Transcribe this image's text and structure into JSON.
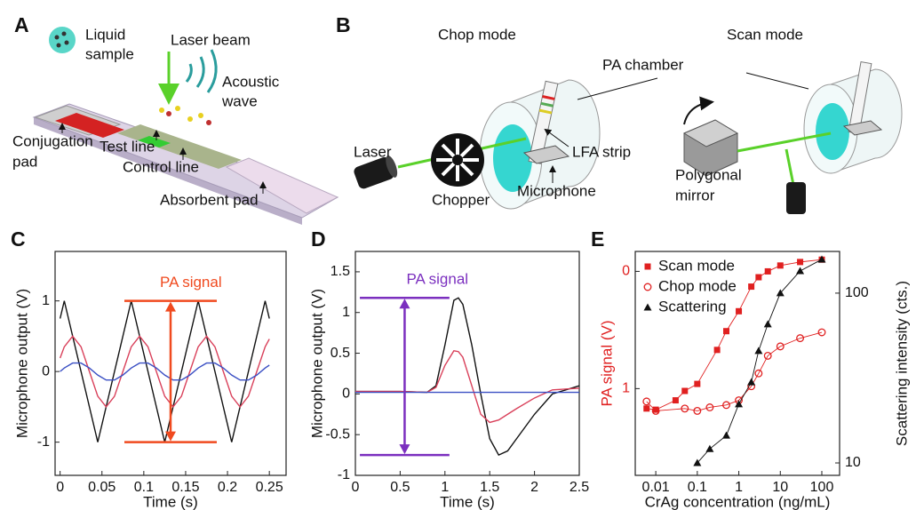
{
  "panel_a": {
    "label": "A",
    "texts": [
      "Liquid",
      "sample",
      "Laser beam",
      "Acoustic",
      "wave",
      "Conjugation",
      "pad",
      "Test line",
      "Control line",
      "Absorbent pad"
    ]
  },
  "panel_b": {
    "label": "B",
    "texts": [
      "Chop mode",
      "Scan mode",
      "PA chamber",
      "Laser",
      "LFA strip",
      "Chopper",
      "Microphone",
      "Polygonal",
      "mirror"
    ]
  },
  "chart_data": [
    {
      "type": "line",
      "panel_label": "C",
      "xlabel": "Time (s)",
      "ylabel": "Microphone output (V)",
      "x": [
        0,
        0.005,
        0.015,
        0.025,
        0.035,
        0.045,
        0.055,
        0.065,
        0.075,
        0.085,
        0.095,
        0.105,
        0.115,
        0.125,
        0.135,
        0.145,
        0.155,
        0.165,
        0.175,
        0.185,
        0.195,
        0.205,
        0.215,
        0.225,
        0.235,
        0.245,
        0.25
      ],
      "series": [
        {
          "color": "#111111",
          "values": [
            0.75,
            1,
            0.5,
            0,
            -0.5,
            -1,
            -0.5,
            0,
            0.5,
            1,
            0.5,
            0,
            -0.5,
            -1,
            -0.5,
            0,
            0.5,
            1,
            0.5,
            0,
            -0.5,
            -1,
            -0.5,
            0,
            0.5,
            1,
            0.75
          ]
        },
        {
          "color": "#d9405a",
          "values": [
            0.19,
            0.35,
            0.5,
            0.35,
            0,
            -0.35,
            -0.5,
            -0.35,
            0,
            0.35,
            0.5,
            0.35,
            0,
            -0.35,
            -0.5,
            -0.35,
            0,
            0.35,
            0.5,
            0.35,
            0,
            -0.35,
            -0.5,
            -0.35,
            0,
            0.35,
            0.46
          ]
        },
        {
          "color": "#3a4fc4",
          "values": [
            0,
            0.05,
            0.12,
            0.12,
            0.05,
            -0.05,
            -0.12,
            -0.12,
            -0.05,
            0.05,
            0.12,
            0.12,
            0.05,
            -0.05,
            -0.12,
            -0.12,
            -0.05,
            0.05,
            0.12,
            0.12,
            0.05,
            -0.05,
            -0.12,
            -0.12,
            -0.05,
            0.05,
            0.09
          ]
        }
      ],
      "xlim": [
        -0.006,
        0.27
      ],
      "xticks": [
        0,
        0.05,
        0.1,
        0.15,
        0.2,
        0.25
      ],
      "ylim": [
        -1.47,
        1.7
      ],
      "yticks": [
        -1,
        0,
        1
      ],
      "annotation": {
        "text": "PA signal",
        "color": "#f04a1f"
      }
    },
    {
      "type": "line",
      "panel_label": "D",
      "xlabel": "Time (s)",
      "ylabel": "Microphone output (V)",
      "x": [
        0,
        0.5,
        0.8,
        0.9,
        1.0,
        1.1,
        1.15,
        1.2,
        1.3,
        1.4,
        1.5,
        1.6,
        1.7,
        1.8,
        2.0,
        2.2,
        2.5
      ],
      "series": [
        {
          "color": "#111111",
          "values": [
            0.03,
            0.03,
            0.02,
            0.1,
            0.6,
            1.15,
            1.18,
            1.1,
            0.6,
            0.0,
            -0.55,
            -0.75,
            -0.7,
            -0.55,
            -0.25,
            0.0,
            0.1
          ]
        },
        {
          "color": "#d9405a",
          "values": [
            0.03,
            0.03,
            0.02,
            0.08,
            0.35,
            0.53,
            0.52,
            0.45,
            0.1,
            -0.25,
            -0.35,
            -0.32,
            -0.25,
            -0.18,
            -0.05,
            0.05,
            0.07
          ]
        },
        {
          "color": "#3a4fc4",
          "values": [
            0.02,
            0.02,
            0.02,
            0.02,
            0.02,
            0.02,
            0.02,
            0.02,
            0.02,
            0.02,
            0.02,
            0.02,
            0.02,
            0.02,
            0.02,
            0.02,
            0.02
          ]
        }
      ],
      "xlim": [
        0,
        2.5
      ],
      "xticks": [
        0,
        0.5,
        1,
        1.5,
        2,
        2.5
      ],
      "ylim": [
        -1,
        1.75
      ],
      "yticks": [
        -1,
        -0.5,
        0,
        0.5,
        1,
        1.5
      ],
      "annotation": {
        "text": "PA signal",
        "color": "#7b2fbf"
      }
    },
    {
      "type": "scatter",
      "panel_label": "E",
      "xlabel": "CrAg concentration (ng/mL)",
      "ylabel": "PA signal (V)",
      "ylabel_color": "#e02020",
      "y2label": "Scattering intensity (cts.)",
      "xlog": true,
      "y2log": true,
      "legend": "upper left",
      "series": [
        {
          "name": "Scan mode",
          "color": "#e02020",
          "marker": "square",
          "x": [
            0.006,
            0.01,
            0.03,
            0.05,
            0.1,
            0.3,
            0.5,
            1,
            2,
            3,
            5,
            10,
            30,
            100
          ],
          "values": [
            1.17,
            1.18,
            1.1,
            1.02,
            0.96,
            0.67,
            0.51,
            0.34,
            0.13,
            0.05,
            0.0,
            -0.05,
            -0.08,
            -0.1
          ]
        },
        {
          "name": "Chop mode",
          "color": "#e02020",
          "marker": "open-circle",
          "x": [
            0.006,
            0.01,
            0.05,
            0.1,
            0.2,
            0.5,
            1,
            2,
            3,
            5,
            10,
            30,
            100
          ],
          "values": [
            1.11,
            1.19,
            1.17,
            1.19,
            1.16,
            1.14,
            1.1,
            0.98,
            0.87,
            0.72,
            0.64,
            0.57,
            0.52
          ]
        },
        {
          "name": "Scattering",
          "color": "#111111",
          "marker": "triangle",
          "axis": "y2",
          "x": [
            0.1,
            0.2,
            0.5,
            1,
            2,
            3,
            5,
            10,
            30,
            100
          ],
          "values": [
            10,
            12.1,
            14.5,
            22.2,
            29.9,
            45.7,
            65.6,
            100,
            135,
            158
          ]
        }
      ],
      "xlim": [
        0.0032,
        268
      ],
      "xticks": [
        0.01,
        0.1,
        1,
        10,
        100
      ],
      "ylim": [
        1.74,
        -0.17
      ],
      "yticks": [
        0,
        1
      ],
      "y2lim": [
        8.45,
        176
      ],
      "y2ticks": [
        10,
        100
      ]
    }
  ]
}
